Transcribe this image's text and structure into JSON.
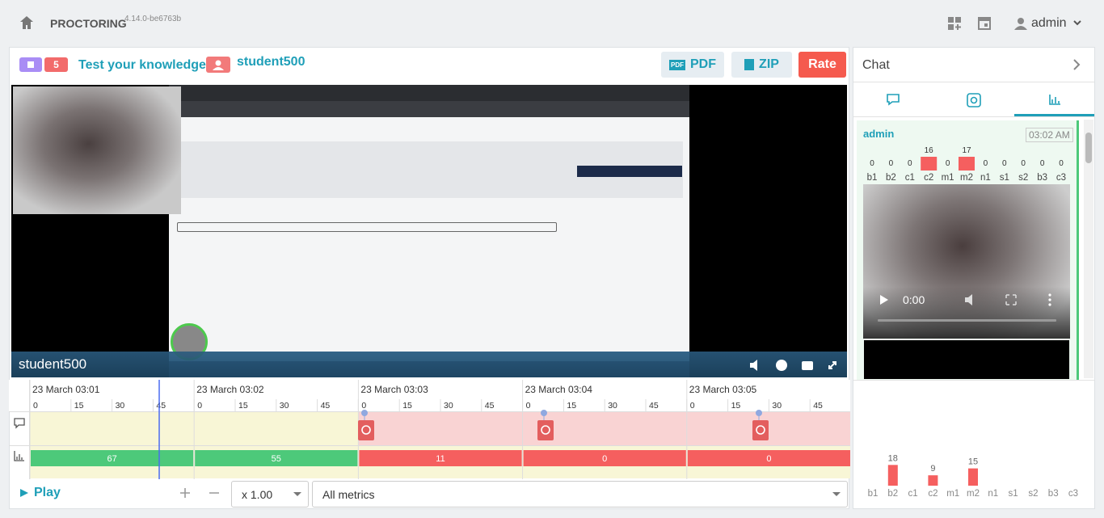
{
  "header": {
    "app": "PROCTORING",
    "version": "4.14.0-be6763b",
    "user": "admin"
  },
  "session": {
    "badge": "5",
    "title": "Test your knowledge",
    "student": "student500",
    "actions": [
      "PDF",
      "ZIP",
      "Rate"
    ]
  },
  "video": {
    "label": "student500"
  },
  "timeline": {
    "minutes": [
      "23 March 03:01",
      "23 March 03:02",
      "23 March 03:03",
      "23 March 03:04",
      "23 March 03:05"
    ],
    "seconds": [
      0,
      15,
      30,
      45
    ],
    "metrics": {
      "values": [
        67,
        55,
        11,
        0,
        0
      ],
      "colors": [
        "#4dc97a",
        "#4dc97a",
        "#f55f5f",
        "#f55f5f",
        "#f55f5f"
      ]
    }
  },
  "controls": {
    "play": "Play",
    "speed": "x 1.00",
    "filter": "All metrics"
  },
  "chat": {
    "title": "Chat",
    "message": {
      "author": "admin",
      "time": "03:02 AM",
      "video_time": "0:00",
      "chart_data": {
        "type": "bar",
        "categories": [
          "b1",
          "b2",
          "c1",
          "c2",
          "m1",
          "m2",
          "n1",
          "s1",
          "s2",
          "b3",
          "c3"
        ],
        "values": [
          0,
          0,
          0,
          16,
          0,
          17,
          0,
          0,
          0,
          0,
          0
        ],
        "color": "#f55f5f"
      }
    }
  },
  "chart_data": {
    "type": "bar",
    "categories": [
      "b1",
      "b2",
      "c1",
      "c2",
      "m1",
      "m2",
      "n1",
      "s1",
      "s2",
      "b3",
      "c3"
    ],
    "values": [
      0,
      18,
      0,
      9,
      0,
      15,
      0,
      0,
      0,
      0,
      0
    ],
    "color": "#f55f5f",
    "ylim": [
      0,
      80
    ]
  }
}
